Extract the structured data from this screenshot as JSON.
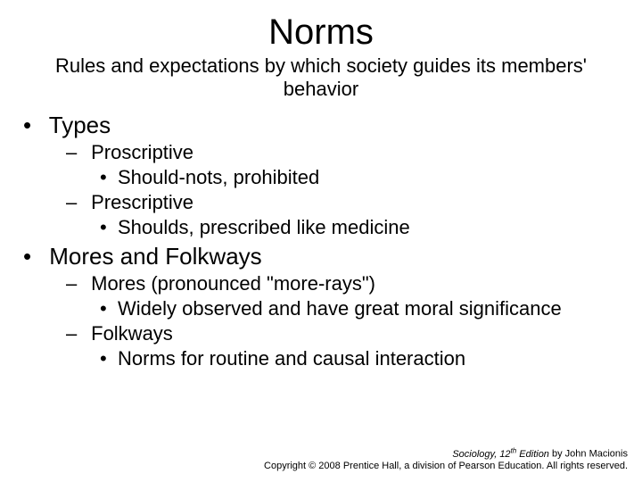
{
  "title": "Norms",
  "subtitle": "Rules and expectations by which society guides its members' behavior",
  "bullets": [
    {
      "label": "Types",
      "children": [
        {
          "label": "Proscriptive",
          "children": [
            {
              "label": "Should-nots, prohibited"
            }
          ]
        },
        {
          "label": "Prescriptive",
          "children": [
            {
              "label": "Shoulds, prescribed like medicine"
            }
          ]
        }
      ]
    },
    {
      "label": "Mores and Folkways",
      "children": [
        {
          "label": "Mores (pronounced \"more-rays\")",
          "children": [
            {
              "label": "Widely observed and have great moral significance"
            }
          ]
        },
        {
          "label": "Folkways",
          "children": [
            {
              "label": "Norms for routine and causal interaction"
            }
          ]
        }
      ]
    }
  ],
  "footer": {
    "line1_prefix": "Sociology, 12",
    "line1_sup": "th",
    "line1_edition": " Edition",
    "line1_author": " by John Macionis",
    "line2": "Copyright © 2008 Prentice Hall, a division of Pearson Education.  All rights reserved."
  },
  "colors": {
    "background": "#ffffff",
    "text": "#000000"
  },
  "fontsize": {
    "title": 40,
    "subtitle": 22,
    "lvl1": 26,
    "lvl2": 22,
    "lvl3": 22,
    "footer": 11
  }
}
